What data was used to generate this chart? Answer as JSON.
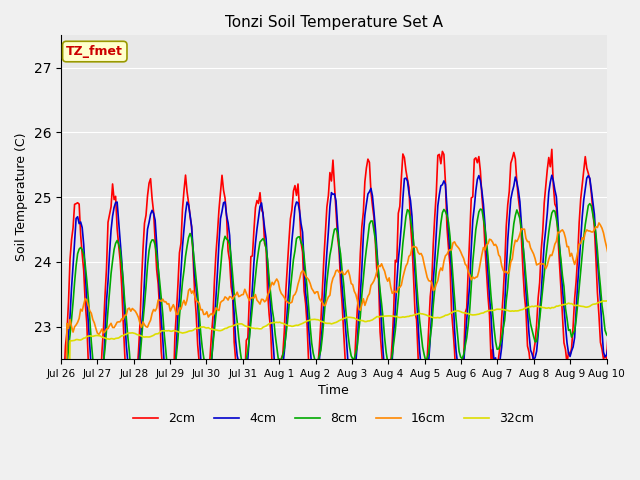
{
  "title": "Tonzi Soil Temperature Set A",
  "xlabel": "Time",
  "ylabel": "Soil Temperature (C)",
  "ylim": [
    22.5,
    27.5
  ],
  "annotation": "TZ_fmet",
  "fig_bg_color": "#f0f0f0",
  "plot_bg_color": "#e8e8e8",
  "line_colors": {
    "2cm": "#ff0000",
    "4cm": "#0000cc",
    "8cm": "#00aa00",
    "16cm": "#ff8800",
    "32cm": "#dddd00"
  },
  "tick_labels": [
    "Jul 26",
    "Jul 27",
    "Jul 28",
    "Jul 29",
    "Jul 30",
    "Jul 31",
    "Aug 1",
    "Aug 2",
    "Aug 3",
    "Aug 4",
    "Aug 5",
    "Aug 6",
    "Aug 7",
    "Aug 8",
    "Aug 9",
    "Aug 10"
  ],
  "n_points": 384
}
